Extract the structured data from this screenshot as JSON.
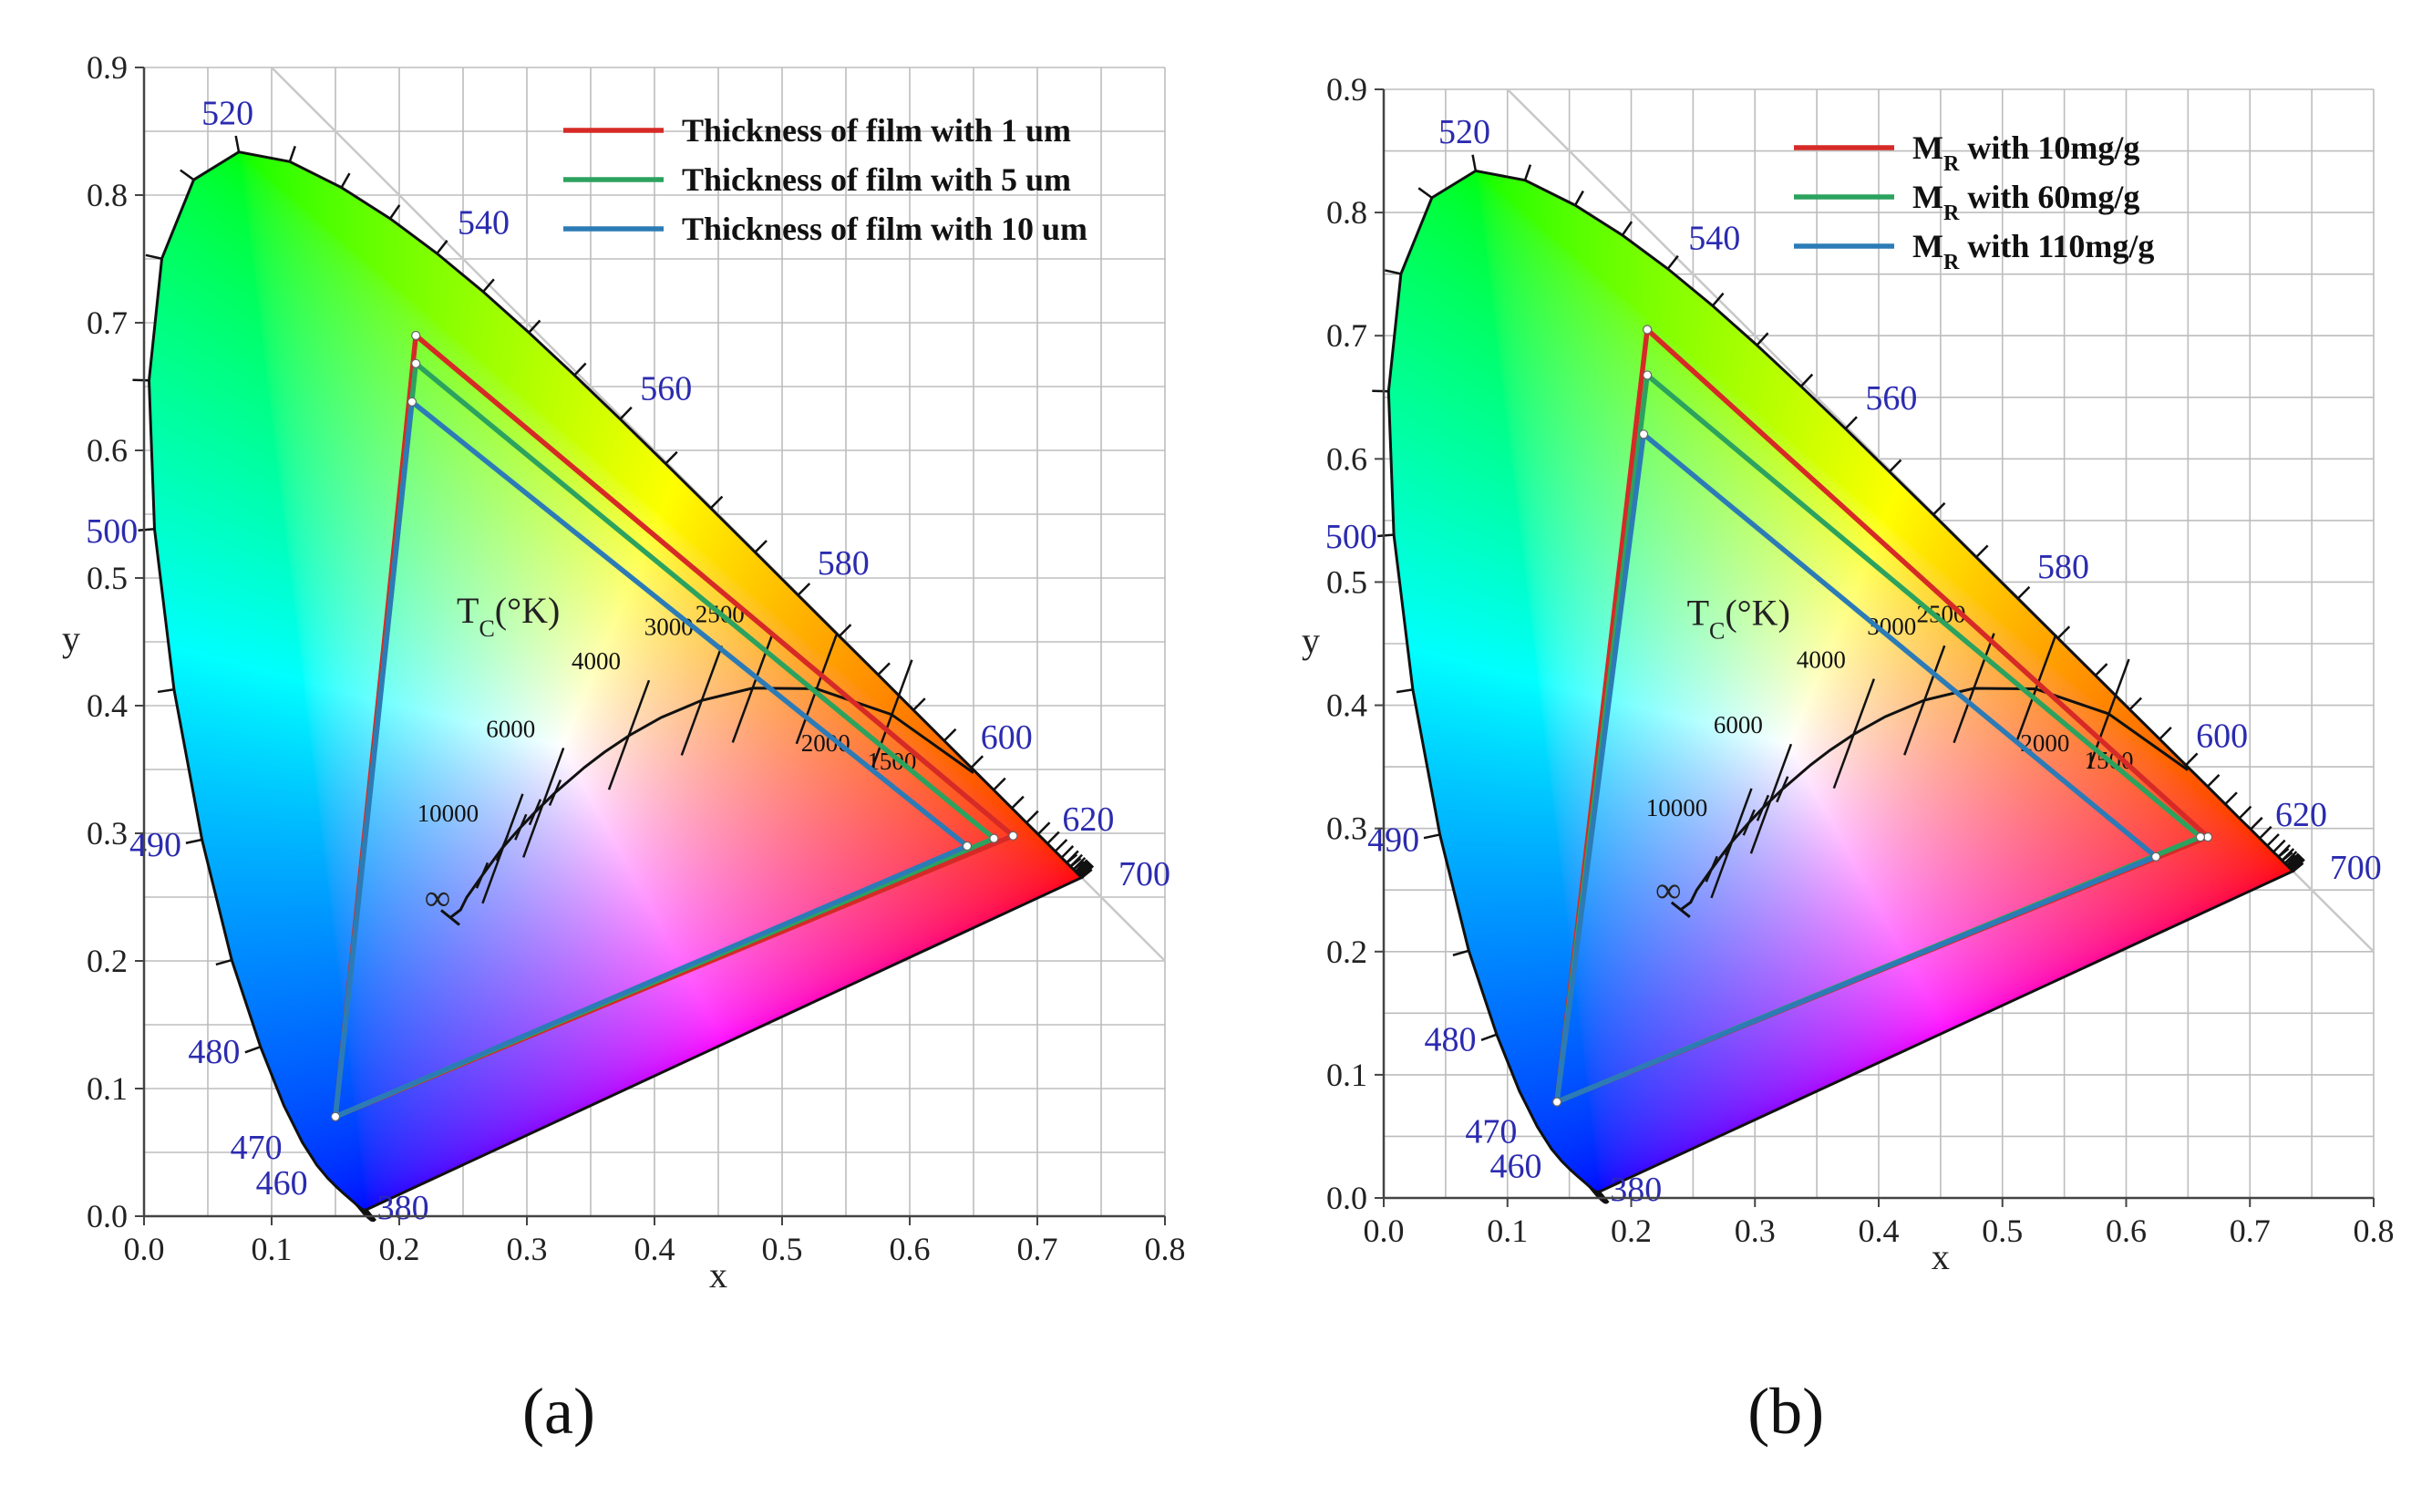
{
  "chart_data": [
    {
      "type": "scatter",
      "panel_label": "(a)",
      "xlabel": "x",
      "ylabel": "y",
      "xlim": [
        0.0,
        0.8
      ],
      "ylim": [
        0.0,
        0.9
      ],
      "x_ticks": [
        "0.0",
        "0.1",
        "0.2",
        "0.3",
        "0.4",
        "0.5",
        "0.6",
        "0.7",
        "0.8"
      ],
      "y_ticks": [
        "0.0",
        "0.1",
        "0.2",
        "0.3",
        "0.4",
        "0.5",
        "0.6",
        "0.7",
        "0.8",
        "0.9"
      ],
      "wavelength_labels": [
        {
          "text": "520",
          "x": 0.074,
          "y": 0.834
        },
        {
          "text": "540",
          "x": 0.23,
          "y": 0.754
        },
        {
          "text": "560",
          "x": 0.373,
          "y": 0.624
        },
        {
          "text": "580",
          "x": 0.512,
          "y": 0.487
        },
        {
          "text": "600",
          "x": 0.627,
          "y": 0.372
        },
        {
          "text": "620",
          "x": 0.691,
          "y": 0.308
        },
        {
          "text": "700",
          "x": 0.735,
          "y": 0.265
        },
        {
          "text": "500",
          "x": 0.008,
          "y": 0.538
        },
        {
          "text": "490",
          "x": 0.045,
          "y": 0.295
        },
        {
          "text": "480",
          "x": 0.091,
          "y": 0.133
        },
        {
          "text": "470",
          "x": 0.124,
          "y": 0.058
        },
        {
          "text": "460",
          "x": 0.144,
          "y": 0.03
        },
        {
          "text": "380",
          "x": 0.174,
          "y": 0.005
        }
      ],
      "planckian": {
        "title_main": "T",
        "title_sub": "C",
        "title_rest": "(°K)",
        "infinity": "∞",
        "temps": [
          {
            "text": "10000",
            "x": 0.281,
            "y": 0.288
          },
          {
            "text": "6000",
            "x": 0.313,
            "y": 0.324
          },
          {
            "text": "4000",
            "x": 0.38,
            "y": 0.377
          },
          {
            "text": "3000",
            "x": 0.437,
            "y": 0.404
          },
          {
            "text": "2500",
            "x": 0.477,
            "y": 0.414
          },
          {
            "text": "2000",
            "x": 0.527,
            "y": 0.413
          },
          {
            "text": "1500",
            "x": 0.586,
            "y": 0.393
          }
        ]
      },
      "series": [
        {
          "name": "Thickness of film with 1 um",
          "color": "#d62a27",
          "points": [
            [
              0.213,
              0.69
            ],
            [
              0.681,
              0.298
            ],
            [
              0.15,
              0.078
            ]
          ]
        },
        {
          "name": "Thickness of film  with 5 um",
          "color": "#2ca25f",
          "points": [
            [
              0.213,
              0.668
            ],
            [
              0.666,
              0.296
            ],
            [
              0.15,
              0.078
            ]
          ]
        },
        {
          "name": "Thickness of film  with 10 um",
          "color": "#2c7bb6",
          "points": [
            [
              0.21,
              0.638
            ],
            [
              0.645,
              0.29
            ],
            [
              0.15,
              0.078
            ]
          ]
        }
      ]
    },
    {
      "type": "scatter",
      "panel_label": "(b)",
      "xlabel": "x",
      "ylabel": "y",
      "xlim": [
        0.0,
        0.8
      ],
      "ylim": [
        0.0,
        0.9
      ],
      "x_ticks": [
        "0.0",
        "0.1",
        "0.2",
        "0.3",
        "0.4",
        "0.5",
        "0.6",
        "0.7",
        "0.8"
      ],
      "y_ticks": [
        "0.0",
        "0.1",
        "0.2",
        "0.3",
        "0.4",
        "0.5",
        "0.6",
        "0.7",
        "0.8",
        "0.9"
      ],
      "wavelength_labels": [
        {
          "text": "520",
          "x": 0.074,
          "y": 0.834
        },
        {
          "text": "540",
          "x": 0.23,
          "y": 0.754
        },
        {
          "text": "560",
          "x": 0.373,
          "y": 0.624
        },
        {
          "text": "580",
          "x": 0.512,
          "y": 0.487
        },
        {
          "text": "600",
          "x": 0.627,
          "y": 0.372
        },
        {
          "text": "620",
          "x": 0.691,
          "y": 0.308
        },
        {
          "text": "700",
          "x": 0.735,
          "y": 0.265
        },
        {
          "text": "500",
          "x": 0.008,
          "y": 0.538
        },
        {
          "text": "490",
          "x": 0.045,
          "y": 0.295
        },
        {
          "text": "480",
          "x": 0.091,
          "y": 0.133
        },
        {
          "text": "470",
          "x": 0.124,
          "y": 0.058
        },
        {
          "text": "460",
          "x": 0.144,
          "y": 0.03
        },
        {
          "text": "380",
          "x": 0.174,
          "y": 0.005
        }
      ],
      "planckian": {
        "title_main": "T",
        "title_sub": "C",
        "title_rest": "(°K)",
        "infinity": "∞",
        "temps": [
          {
            "text": "10000",
            "x": 0.281,
            "y": 0.288
          },
          {
            "text": "6000",
            "x": 0.313,
            "y": 0.324
          },
          {
            "text": "4000",
            "x": 0.38,
            "y": 0.377
          },
          {
            "text": "3000",
            "x": 0.437,
            "y": 0.404
          },
          {
            "text": "2500",
            "x": 0.477,
            "y": 0.414
          },
          {
            "text": "2000",
            "x": 0.527,
            "y": 0.413
          },
          {
            "text": "1500",
            "x": 0.586,
            "y": 0.393
          }
        ]
      },
      "series": [
        {
          "name": "MR with 10mg/g",
          "name_main": "M",
          "name_sub": "R",
          "name_rest": " with 10mg/g",
          "color": "#d62a27",
          "points": [
            [
              0.213,
              0.705
            ],
            [
              0.666,
              0.293
            ],
            [
              0.14,
              0.078
            ]
          ]
        },
        {
          "name": "MR with 60mg/g",
          "name_main": "M",
          "name_sub": "R",
          "name_rest": " with 60mg/g",
          "color": "#2ca25f",
          "points": [
            [
              0.213,
              0.668
            ],
            [
              0.66,
              0.293
            ],
            [
              0.14,
              0.078
            ]
          ]
        },
        {
          "name": "MR with 110mg/g",
          "name_main": "M",
          "name_sub": "R",
          "name_rest": " with 110mg/g",
          "color": "#2c7bb6",
          "points": [
            [
              0.21,
              0.62
            ],
            [
              0.624,
              0.277
            ],
            [
              0.14,
              0.078
            ]
          ]
        }
      ]
    }
  ]
}
